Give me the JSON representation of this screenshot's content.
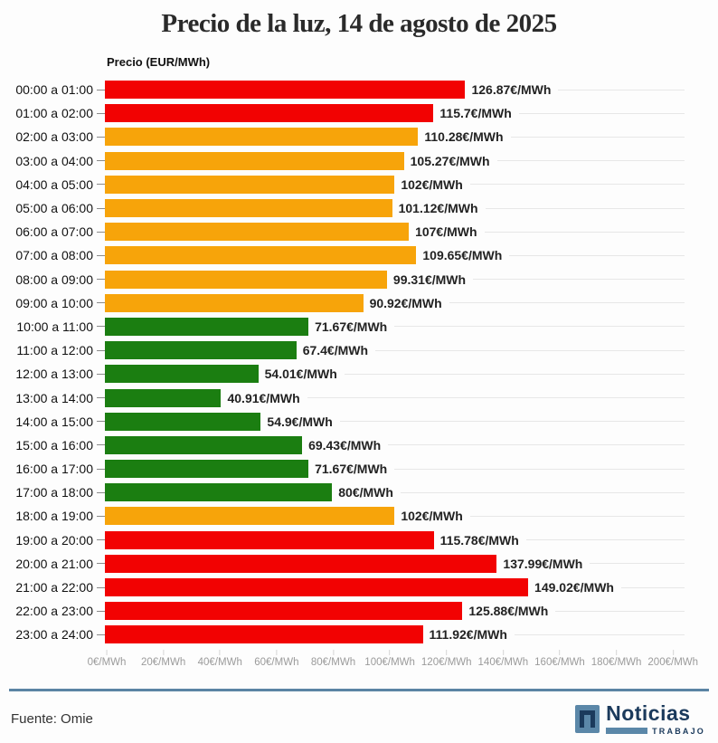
{
  "title": "Precio de la luz, 14 de agosto de 2025",
  "axis_title": "Precio (EUR/MWh)",
  "colors": {
    "red": "#f20202",
    "orange": "#f7a40a",
    "green": "#1b7e11",
    "grid": "#e7e7e7",
    "axis_text": "#9b9b9b",
    "accent_blue": "#5b87a8",
    "rule_blue": "#5b84a4",
    "logo_navy": "#1b3a5c"
  },
  "chart_data": {
    "type": "bar",
    "orientation": "horizontal",
    "title": "Precio de la luz, 14 de agosto de 2025",
    "ylabel": "Precio (EUR/MWh)",
    "xlim": [
      0,
      200
    ],
    "grid": true,
    "x_ticks": [
      {
        "value": 0,
        "label": "0€/MWh"
      },
      {
        "value": 20,
        "label": "20€/MWh"
      },
      {
        "value": 40,
        "label": "40€/MWh"
      },
      {
        "value": 60,
        "label": "60€/MWh"
      },
      {
        "value": 80,
        "label": "80€/MWh"
      },
      {
        "value": 100,
        "label": "100€/MWh"
      },
      {
        "value": 120,
        "label": "120€/MWh"
      },
      {
        "value": 140,
        "label": "140€/MWh"
      },
      {
        "value": 160,
        "label": "160€/MWh"
      },
      {
        "value": 180,
        "label": "180€/MWh"
      },
      {
        "value": 200,
        "label": "200€/MWh"
      }
    ],
    "rows": [
      {
        "hour": "00:00 a 01:00",
        "value": 126.87,
        "label": "126.87€/MWh",
        "level": "red"
      },
      {
        "hour": "01:00 a 02:00",
        "value": 115.7,
        "label": "115.7€/MWh",
        "level": "red"
      },
      {
        "hour": "02:00 a 03:00",
        "value": 110.28,
        "label": "110.28€/MWh",
        "level": "orange"
      },
      {
        "hour": "03:00 a 04:00",
        "value": 105.27,
        "label": "105.27€/MWh",
        "level": "orange"
      },
      {
        "hour": "04:00 a 05:00",
        "value": 102,
        "label": "102€/MWh",
        "level": "orange"
      },
      {
        "hour": "05:00 a 06:00",
        "value": 101.12,
        "label": "101.12€/MWh",
        "level": "orange"
      },
      {
        "hour": "06:00 a 07:00",
        "value": 107,
        "label": "107€/MWh",
        "level": "orange"
      },
      {
        "hour": "07:00 a 08:00",
        "value": 109.65,
        "label": "109.65€/MWh",
        "level": "orange"
      },
      {
        "hour": "08:00 a 09:00",
        "value": 99.31,
        "label": "99.31€/MWh",
        "level": "orange"
      },
      {
        "hour": "09:00 a 10:00",
        "value": 90.92,
        "label": "90.92€/MWh",
        "level": "orange"
      },
      {
        "hour": "10:00 a 11:00",
        "value": 71.67,
        "label": "71.67€/MWh",
        "level": "green"
      },
      {
        "hour": "11:00 a 12:00",
        "value": 67.4,
        "label": "67.4€/MWh",
        "level": "green"
      },
      {
        "hour": "12:00 a 13:00",
        "value": 54.01,
        "label": "54.01€/MWh",
        "level": "green"
      },
      {
        "hour": "13:00 a 14:00",
        "value": 40.91,
        "label": "40.91€/MWh",
        "level": "green"
      },
      {
        "hour": "14:00 a 15:00",
        "value": 54.9,
        "label": "54.9€/MWh",
        "level": "green"
      },
      {
        "hour": "15:00 a 16:00",
        "value": 69.43,
        "label": "69.43€/MWh",
        "level": "green"
      },
      {
        "hour": "16:00 a 17:00",
        "value": 71.67,
        "label": "71.67€/MWh",
        "level": "green"
      },
      {
        "hour": "17:00 a 18:00",
        "value": 80,
        "label": "80€/MWh",
        "level": "green"
      },
      {
        "hour": "18:00 a 19:00",
        "value": 102,
        "label": "102€/MWh",
        "level": "orange"
      },
      {
        "hour": "19:00 a 20:00",
        "value": 115.78,
        "label": "115.78€/MWh",
        "level": "red"
      },
      {
        "hour": "20:00 a 21:00",
        "value": 137.99,
        "label": "137.99€/MWh",
        "level": "red"
      },
      {
        "hour": "21:00 a 22:00",
        "value": 149.02,
        "label": "149.02€/MWh",
        "level": "red"
      },
      {
        "hour": "22:00 a 23:00",
        "value": 125.88,
        "label": "125.88€/MWh",
        "level": "red"
      },
      {
        "hour": "23:00 a 24:00",
        "value": 111.92,
        "label": "111.92€/MWh",
        "level": "red"
      }
    ]
  },
  "footer": {
    "source": "Fuente: Omie",
    "logo_name": "Noticias",
    "logo_subtitle": "TRABAJO"
  }
}
